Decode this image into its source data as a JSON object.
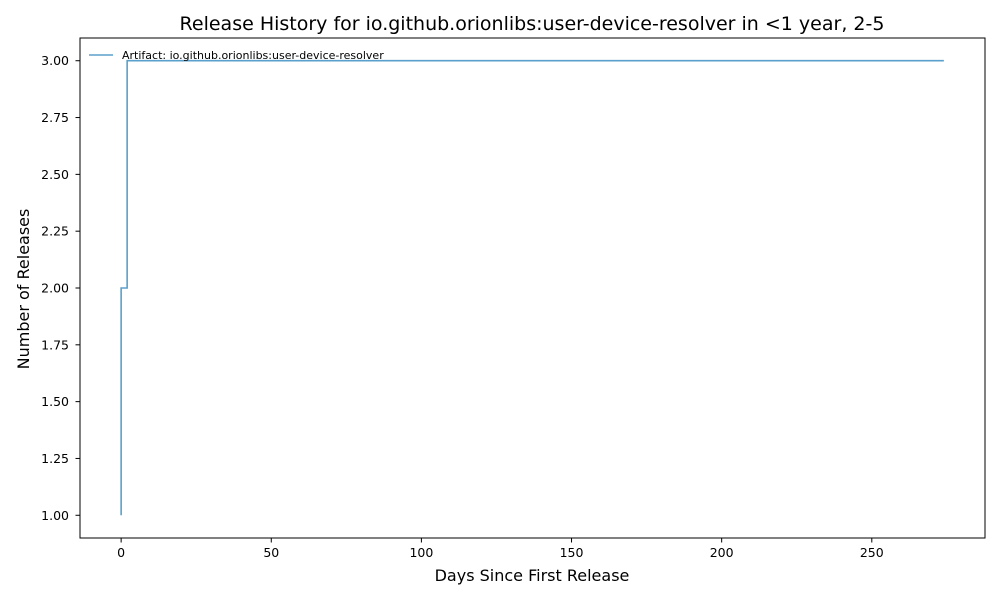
{
  "chart_data": {
    "type": "line",
    "drawstyle": "steps-post",
    "title": "Release History for io.github.orionlibs:user-device-resolver in <1 year, 2-5",
    "xlabel": "Days Since First Release",
    "ylabel": "Number of Releases",
    "xlim": [
      -13.7,
      287.7
    ],
    "ylim": [
      0.9,
      3.1
    ],
    "xticks": [
      0,
      50,
      100,
      150,
      200,
      250
    ],
    "yticks": [
      1.0,
      1.25,
      1.5,
      1.75,
      2.0,
      2.25,
      2.5,
      2.75,
      3.0
    ],
    "xtick_labels": [
      "0",
      "50",
      "100",
      "150",
      "200",
      "250"
    ],
    "ytick_labels": [
      "1.00",
      "1.25",
      "1.50",
      "1.75",
      "2.00",
      "2.25",
      "2.50",
      "2.75",
      "3.00"
    ],
    "grid": false,
    "legend_position": "upper-left",
    "series": [
      {
        "name": "Artifact: io.github.orionlibs:user-device-resolver",
        "color": "#5b9fcb",
        "x": [
          0,
          0,
          2,
          274
        ],
        "y": [
          1,
          2,
          3,
          3
        ]
      }
    ]
  }
}
